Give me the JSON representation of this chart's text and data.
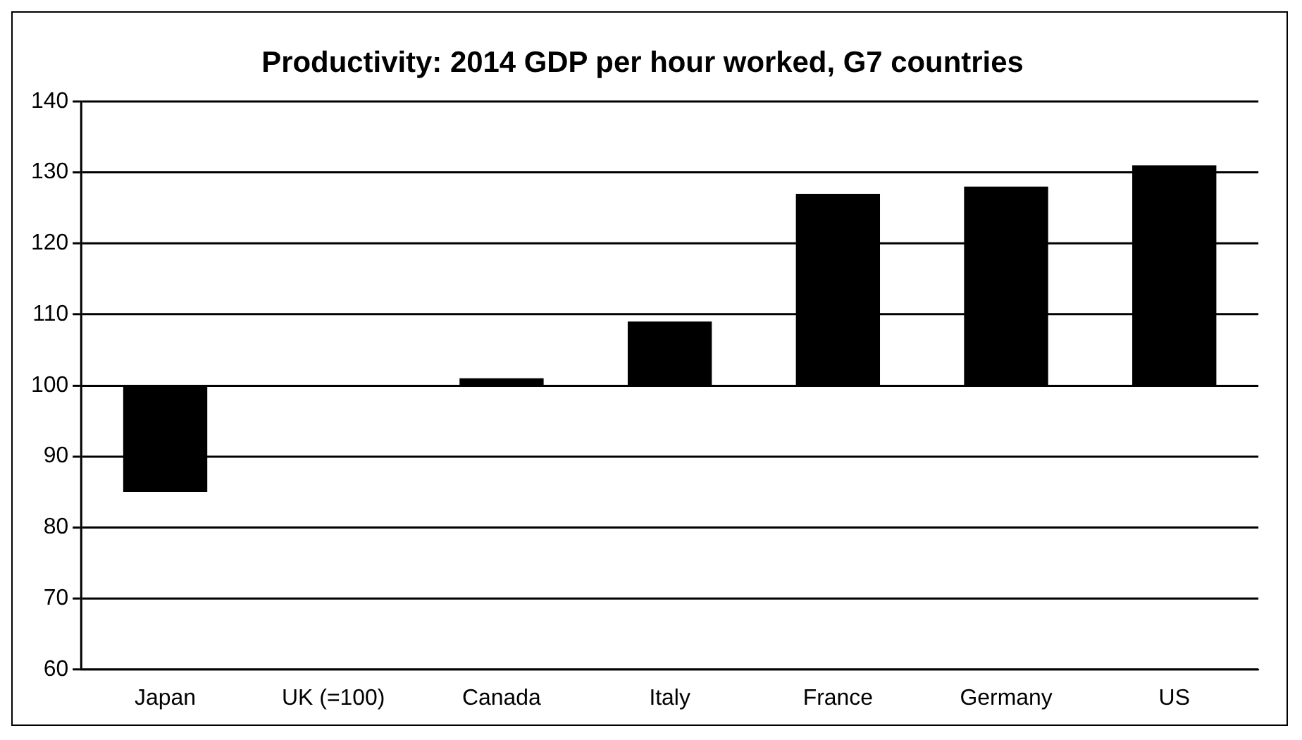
{
  "chart_data": {
    "type": "bar",
    "title": "Productivity: 2014 GDP per hour worked, G7 countries",
    "categories": [
      "Japan",
      "UK (=100)",
      "Canada",
      "Italy",
      "France",
      "Germany",
      "US"
    ],
    "base": [
      100,
      null,
      100,
      100,
      100,
      100,
      100
    ],
    "values": [
      -15,
      null,
      1,
      9,
      27,
      28,
      31
    ],
    "color": "#000000",
    "ylim": [
      60,
      140
    ],
    "yticks": [
      60,
      70,
      80,
      90,
      100,
      110,
      120,
      130,
      140
    ],
    "grid": "y",
    "legend": false
  }
}
